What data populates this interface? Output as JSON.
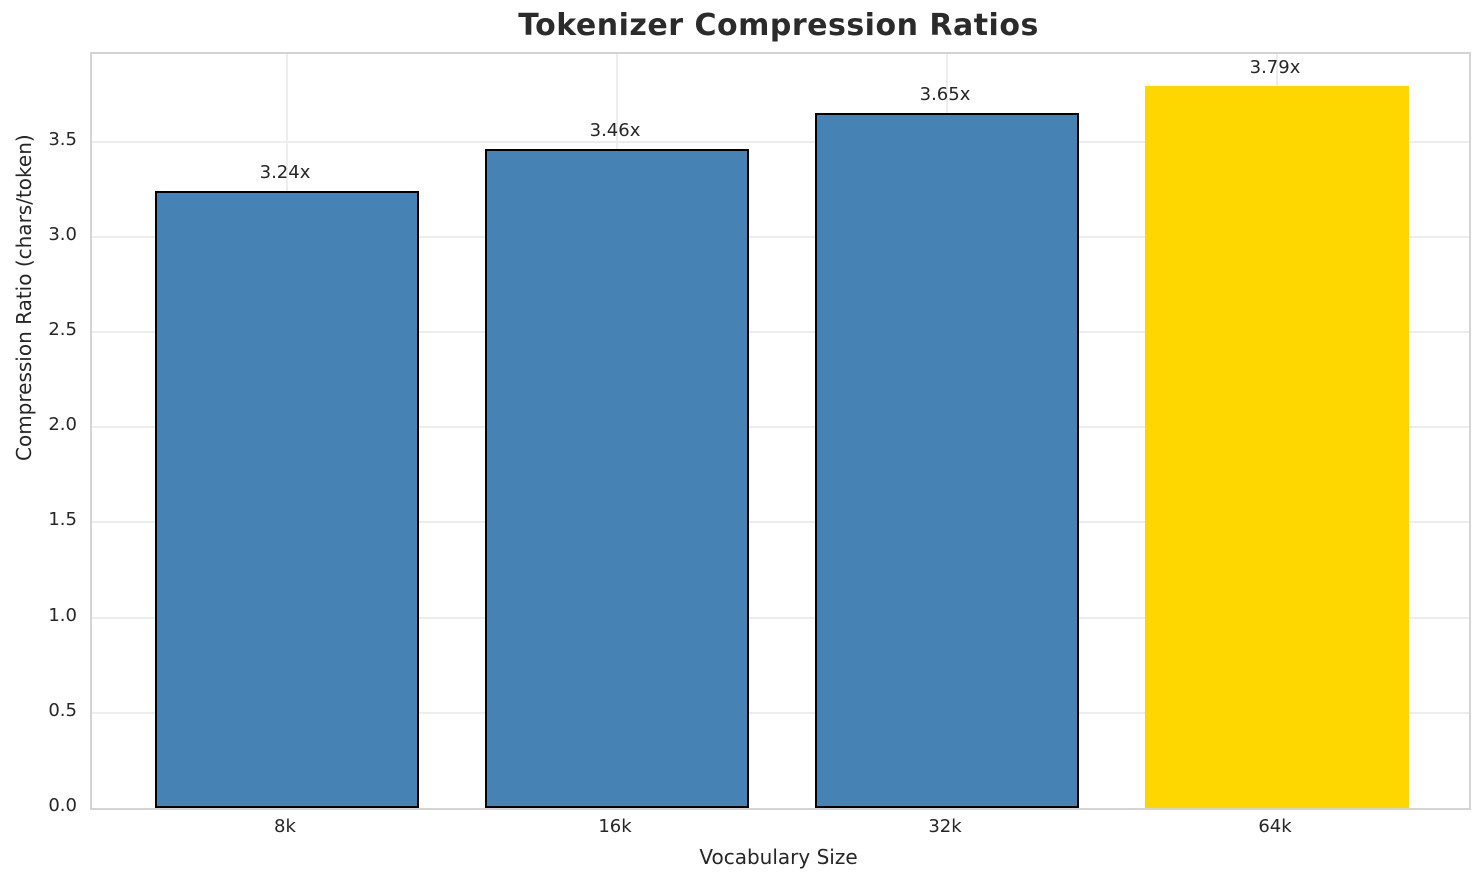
{
  "chart_data": {
    "type": "bar",
    "title": "Tokenizer Compression Ratios",
    "xlabel": "Vocabulary Size",
    "ylabel": "Compression Ratio (chars/token)",
    "categories": [
      "8k",
      "16k",
      "32k",
      "64k"
    ],
    "values": [
      3.24,
      3.46,
      3.65,
      3.79
    ],
    "bar_labels": [
      "3.24x",
      "3.46x",
      "3.65x",
      "3.79x"
    ],
    "highlight_index": 3,
    "ylim": [
      0,
      3.96
    ],
    "yticks": [
      0.0,
      0.5,
      1.0,
      1.5,
      2.0,
      2.5,
      3.0,
      3.5
    ],
    "ytick_labels": [
      "0.0",
      "0.5",
      "1.0",
      "1.5",
      "2.0",
      "2.5",
      "3.0",
      "3.5"
    ],
    "grid": true,
    "grid_axes": "both",
    "legend": "none",
    "colors": {
      "bar_default": "#4682B4",
      "bar_highlight": "#FFD700",
      "bar_edge": "#000000",
      "grid": "#ededed",
      "spine": "#d4d4d4",
      "text": "#262626",
      "background": "#ffffff"
    }
  }
}
